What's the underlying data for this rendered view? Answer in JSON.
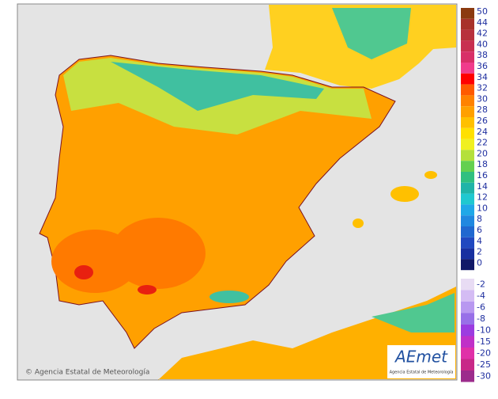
{
  "legend": {
    "levels": [
      {
        "value": 50,
        "color": "#8b3a10"
      },
      {
        "value": 44,
        "color": "#a8322a"
      },
      {
        "value": 42,
        "color": "#b8303c"
      },
      {
        "value": 40,
        "color": "#c82f50"
      },
      {
        "value": 38,
        "color": "#d83068"
      },
      {
        "value": 36,
        "color": "#f03c8c"
      },
      {
        "value": 34,
        "color": "#ff0000"
      },
      {
        "value": 32,
        "color": "#ff5a00"
      },
      {
        "value": 30,
        "color": "#ff8200"
      },
      {
        "value": 28,
        "color": "#ffa000"
      },
      {
        "value": 26,
        "color": "#ffc000"
      },
      {
        "value": 24,
        "color": "#ffe000"
      },
      {
        "value": 22,
        "color": "#f0f020"
      },
      {
        "value": 20,
        "color": "#b4e03c"
      },
      {
        "value": 18,
        "color": "#64d050"
      },
      {
        "value": 16,
        "color": "#30c080"
      },
      {
        "value": 14,
        "color": "#20b4a8"
      },
      {
        "value": 12,
        "color": "#20c8d0"
      },
      {
        "value": 10,
        "color": "#20a8e8"
      },
      {
        "value": 8,
        "color": "#2088e0"
      },
      {
        "value": 6,
        "color": "#2068d0"
      },
      {
        "value": 4,
        "color": "#2048c0"
      },
      {
        "value": 2,
        "color": "#1830a0"
      },
      {
        "value": 0,
        "color": "#101868"
      },
      {
        "value": -2,
        "color": "#e8dcf4"
      },
      {
        "value": -4,
        "color": "#d4bcf4"
      },
      {
        "value": -6,
        "color": "#b898f0"
      },
      {
        "value": -8,
        "color": "#9870e8"
      },
      {
        "value": -10,
        "color": "#9c3ce0"
      },
      {
        "value": -15,
        "color": "#c030c8"
      },
      {
        "value": -20,
        "color": "#e030a8"
      },
      {
        "value": -25,
        "color": "#c82888"
      },
      {
        "value": -30,
        "color": "#9c2c8c"
      }
    ]
  },
  "footer": {
    "credit": "© Agencia Estatal de Meteorología"
  },
  "logo": {
    "name": "AEmet",
    "subtitle": "Agencia Estatal de Meteorología"
  }
}
